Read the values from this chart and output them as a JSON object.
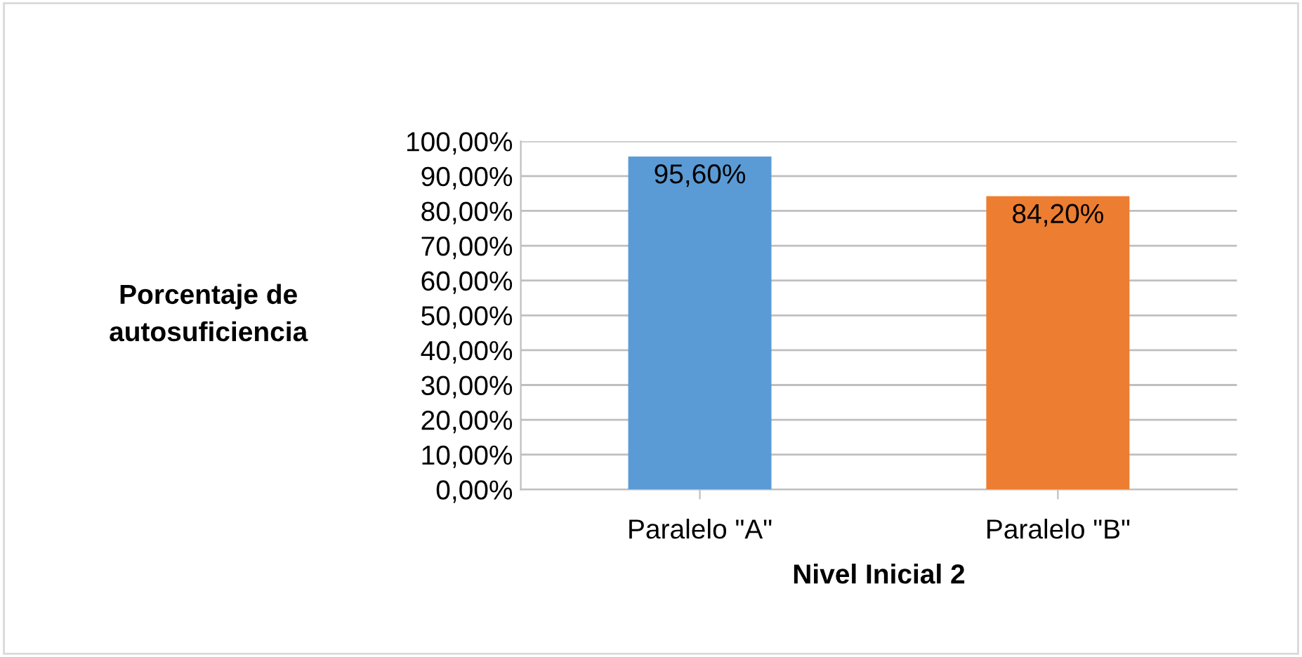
{
  "chart_data": {
    "type": "bar",
    "xlabel": "Nivel Inicial 2",
    "ylabel": "Porcentaje de\nautosuficiencia",
    "categories": [
      "Paralelo \"A\"",
      "Paralelo \"B\""
    ],
    "values": [
      95.6,
      84.2
    ],
    "colors": [
      "#5b9bd5",
      "#ed7d31"
    ],
    "value_labels": [
      "95,60%",
      "84,20%"
    ],
    "ylim": [
      0,
      100
    ],
    "yticks": [
      {
        "value": 0,
        "label": "0,00%"
      },
      {
        "value": 10,
        "label": "10,00%"
      },
      {
        "value": 20,
        "label": "20,00%"
      },
      {
        "value": 30,
        "label": "30,00%"
      },
      {
        "value": 40,
        "label": "40,00%"
      },
      {
        "value": 50,
        "label": "50,00%"
      },
      {
        "value": 60,
        "label": "60,00%"
      },
      {
        "value": 70,
        "label": "70,00%"
      },
      {
        "value": 80,
        "label": "80,00%"
      },
      {
        "value": 90,
        "label": "90,00%"
      },
      {
        "value": 100,
        "label": "100,00%"
      }
    ],
    "grid": "y"
  }
}
